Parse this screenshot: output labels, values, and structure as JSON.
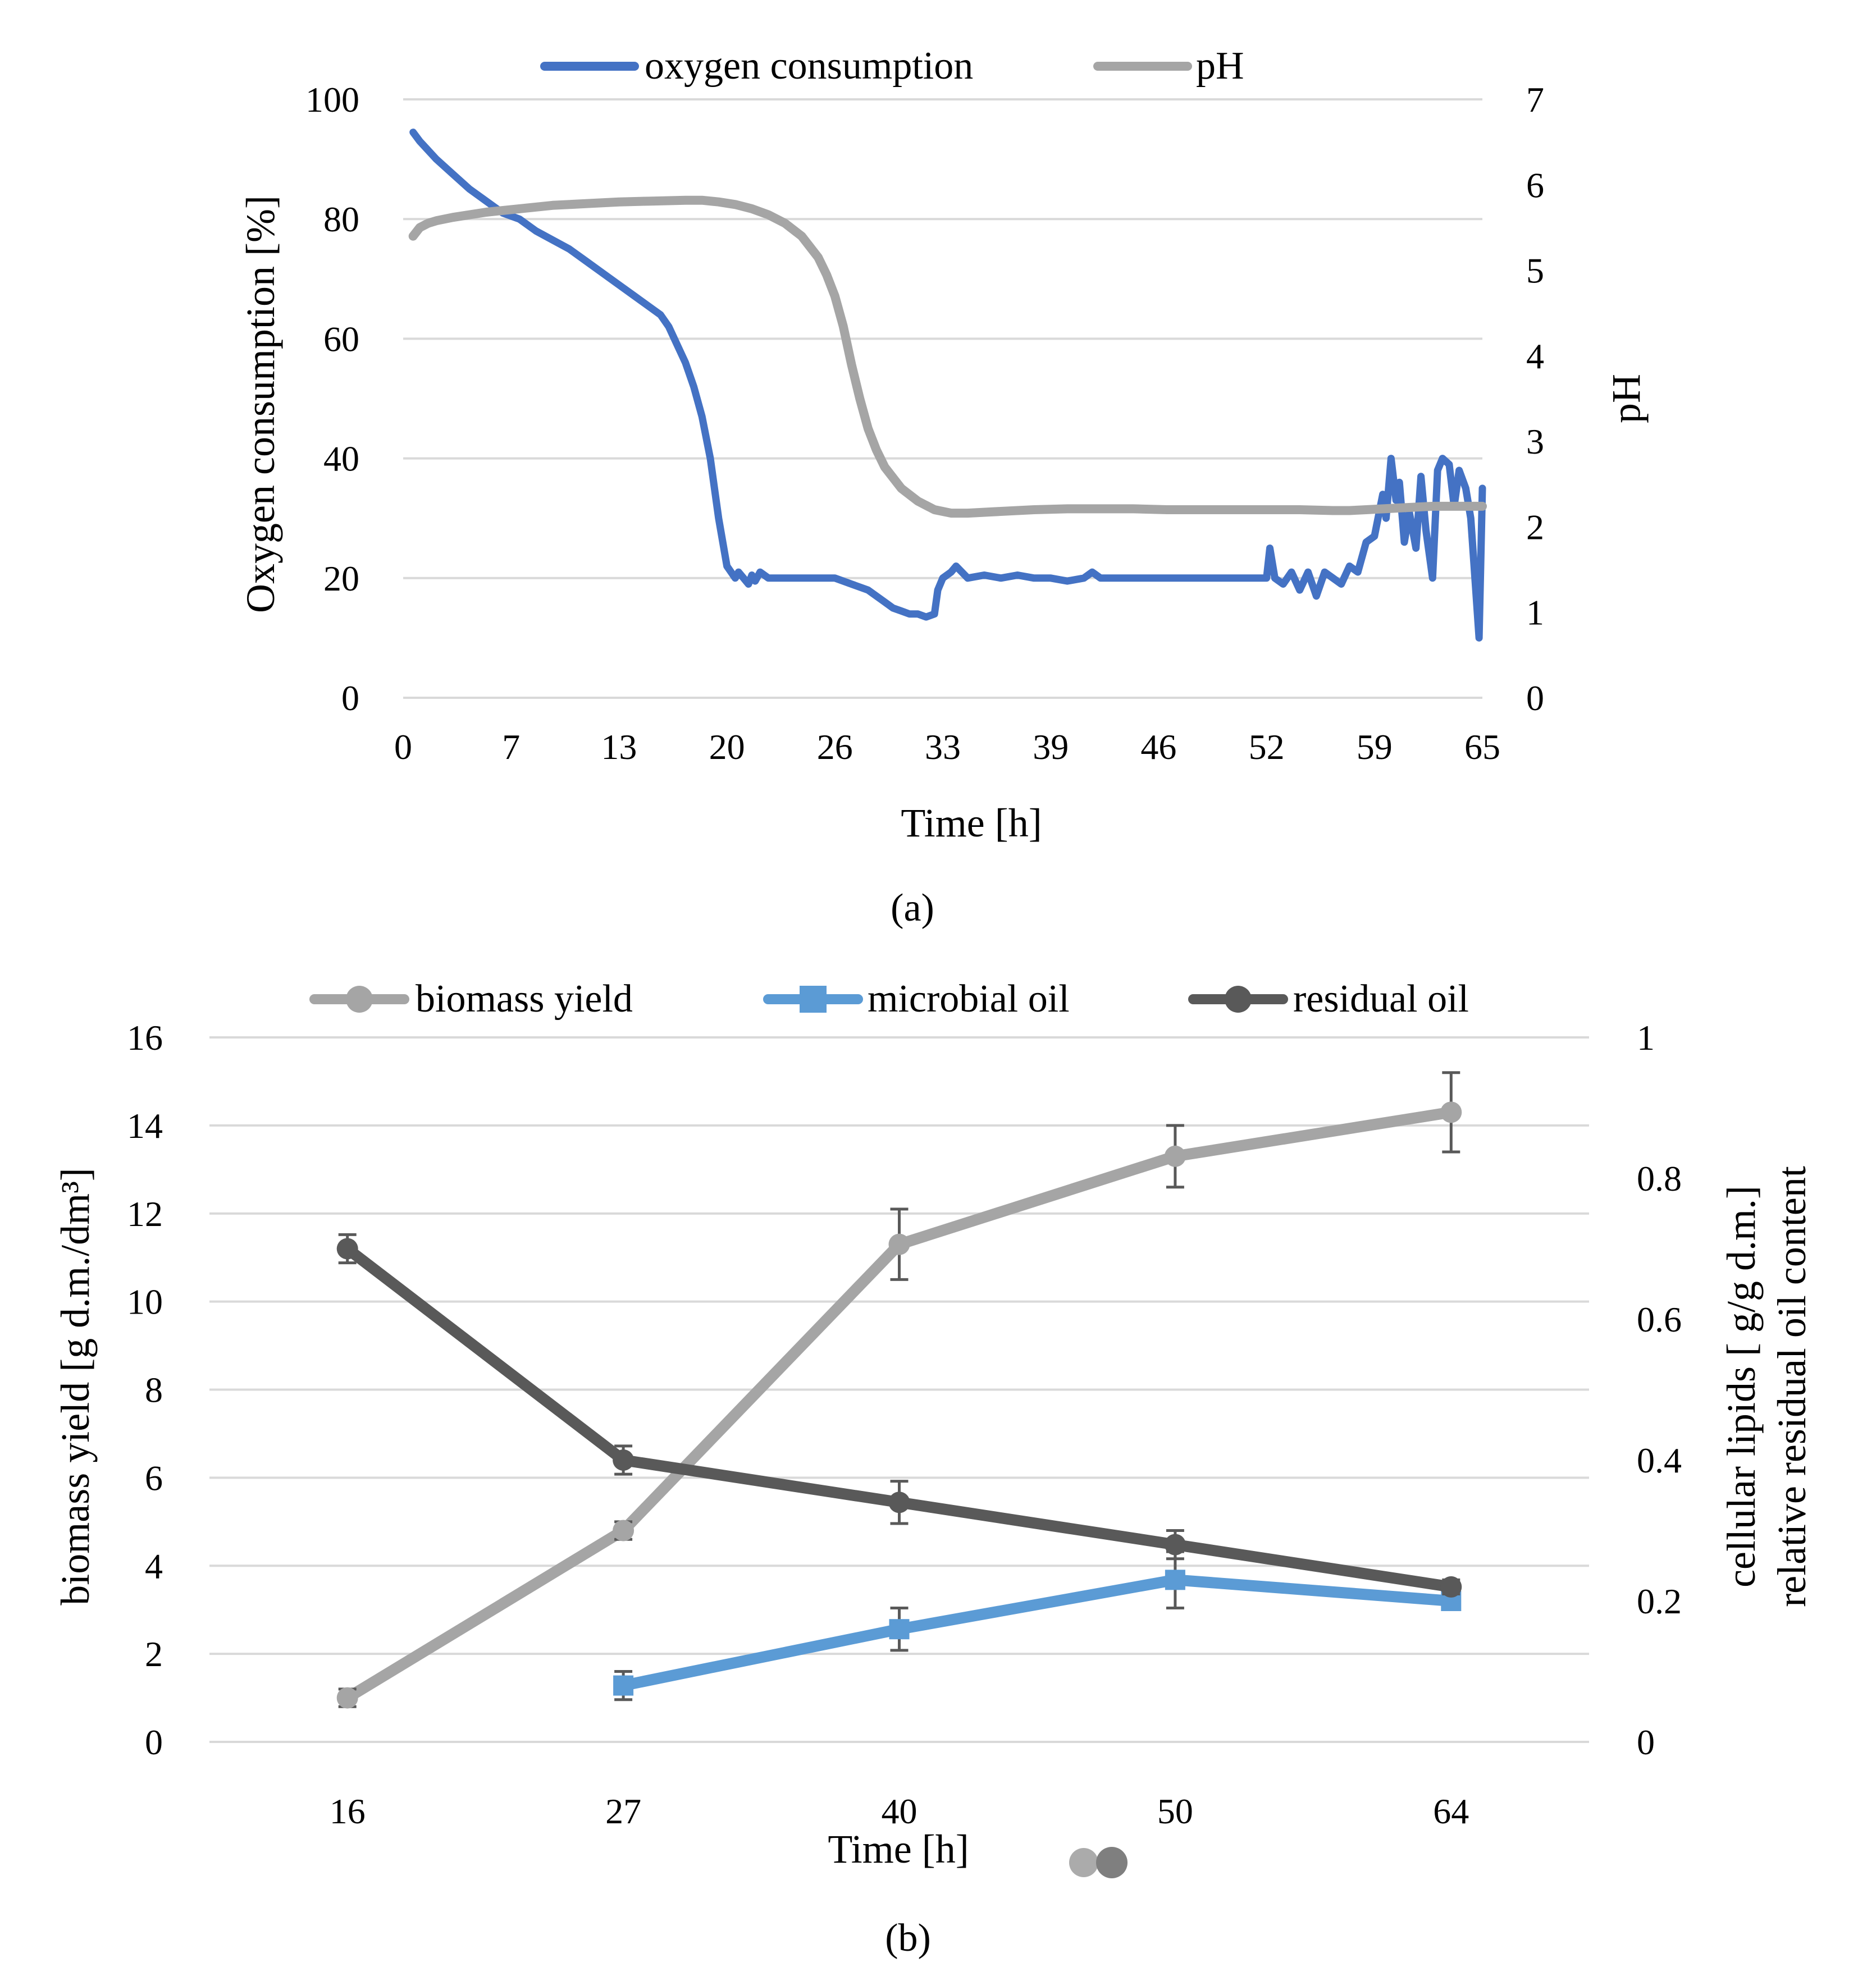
{
  "chart_data": [
    {
      "type": "line",
      "panel_label": "a",
      "xlabel": "Time [h]",
      "ylabel": "Oxygen consumption [%]",
      "y2label": "pH",
      "x_ticks": [
        "0",
        "7",
        "13",
        "20",
        "26",
        "33",
        "39",
        "46",
        "52",
        "59",
        "65"
      ],
      "xlim": [
        0,
        65
      ],
      "ylim": [
        0,
        100
      ],
      "y_ticks": [
        0,
        20,
        40,
        60,
        80,
        100
      ],
      "y2lim": [
        0,
        7
      ],
      "y2_ticks": [
        0,
        1,
        2,
        3,
        4,
        5,
        6,
        7
      ],
      "grid": true,
      "legend": "top-center",
      "series": [
        {
          "name": "oxygen consumption",
          "axis": "left",
          "color": "#4472c4",
          "x": [
            0.6,
            1,
            2,
            3,
            4,
            5,
            6,
            7,
            8,
            9,
            10,
            11,
            12,
            13,
            14,
            15,
            15.5,
            16,
            16.5,
            17,
            17.5,
            18,
            18.5,
            19,
            19.5,
            20,
            20.2,
            20.5,
            20.8,
            21,
            21.2,
            21.5,
            22,
            23,
            23.5,
            24,
            25,
            26,
            27,
            28,
            29,
            29.5,
            30,
            30.5,
            31,
            31.5,
            32,
            32.2,
            32.5,
            33,
            33.3,
            34,
            35,
            36,
            37,
            38,
            39,
            40,
            41,
            41.5,
            42,
            43,
            44,
            45,
            46,
            47,
            48,
            49,
            50,
            51,
            52,
            52.2,
            52.5,
            53,
            53.5,
            54,
            54.5,
            55,
            55.5,
            56,
            56.5,
            57,
            57.5,
            58,
            58.5,
            59,
            59.2,
            59.5,
            59.8,
            60,
            60.3,
            60.6,
            61,
            61.3,
            61.6,
            62,
            62.3,
            62.6,
            63,
            63.3,
            63.6,
            64,
            64.3,
            64.6,
            64.8,
            65
          ],
          "y": [
            94.5,
            93,
            90,
            87.5,
            85,
            83,
            81,
            80,
            78,
            76.5,
            75,
            73,
            71,
            69,
            67,
            65,
            64,
            62,
            59,
            56,
            52,
            47,
            40,
            30,
            22,
            20,
            21,
            20,
            19,
            20.5,
            19.5,
            21,
            20,
            20,
            20,
            20,
            20,
            20,
            19,
            18,
            16,
            15,
            14.5,
            14,
            14,
            13.5,
            14,
            18,
            20,
            21,
            22,
            20,
            20.5,
            20,
            20.5,
            20,
            20,
            19.5,
            20,
            21,
            20,
            20,
            20,
            20,
            20,
            20,
            20,
            20,
            20,
            20,
            20,
            25,
            20,
            19,
            21,
            18,
            21,
            17,
            21,
            20,
            19,
            22,
            21,
            26,
            27,
            34,
            30,
            40,
            33,
            36,
            26,
            31,
            25,
            37,
            28,
            20,
            38,
            40,
            39,
            32,
            38,
            35,
            30,
            18,
            10,
            35
          ]
        },
        {
          "name": "pH",
          "axis": "right",
          "color": "#a5a5a5",
          "x": [
            0.6,
            1,
            1.5,
            2,
            3,
            5,
            7,
            9,
            11,
            13,
            15,
            17,
            18,
            19,
            20,
            21,
            22,
            23,
            24,
            25,
            25.5,
            26,
            26.5,
            27,
            27.5,
            28,
            28.5,
            29,
            30,
            31,
            32,
            33,
            34,
            36,
            38,
            40,
            42,
            44,
            46,
            48,
            50,
            52,
            54,
            56,
            57,
            58,
            60,
            62,
            64,
            65
          ],
          "y": [
            5.4,
            5.5,
            5.55,
            5.58,
            5.62,
            5.68,
            5.72,
            5.76,
            5.78,
            5.8,
            5.81,
            5.82,
            5.82,
            5.8,
            5.77,
            5.72,
            5.65,
            5.55,
            5.4,
            5.15,
            4.95,
            4.7,
            4.35,
            3.9,
            3.5,
            3.15,
            2.9,
            2.7,
            2.45,
            2.3,
            2.2,
            2.16,
            2.16,
            2.18,
            2.2,
            2.21,
            2.21,
            2.21,
            2.2,
            2.2,
            2.2,
            2.2,
            2.2,
            2.19,
            2.19,
            2.2,
            2.22,
            2.24,
            2.24,
            2.24
          ]
        }
      ]
    },
    {
      "type": "line",
      "panel_label": "b",
      "xlabel": "Time [h]",
      "ylabel": "biomass yield [g d.m./dm³]",
      "y2label": "cellular lipids [ g/g d.m.]\nrelative residual oil content",
      "y2label_lines": [
        "cellular lipids [ g/g d.m.]",
        "relative residual oil content"
      ],
      "categories": [
        "16",
        "27",
        "40",
        "50",
        "64"
      ],
      "ylim": [
        0,
        16
      ],
      "y_ticks": [
        0,
        2,
        4,
        6,
        8,
        10,
        12,
        14,
        16
      ],
      "y2lim": [
        0,
        1
      ],
      "y2_ticks": [
        "0",
        "0.2",
        "0.4",
        "0.6",
        "0.8",
        "1"
      ],
      "grid": true,
      "legend": "top-center",
      "series": [
        {
          "name": "biomass yield",
          "axis": "left",
          "color": "#a5a5a5",
          "marker": "circle",
          "values": [
            1.0,
            4.8,
            11.3,
            13.3,
            14.3
          ],
          "errors": [
            0.2,
            0.2,
            0.8,
            0.7,
            0.9
          ]
        },
        {
          "name": "microbial oil",
          "axis": "right",
          "color": "#5b9bd5",
          "marker": "square",
          "values": [
            null,
            0.08,
            0.16,
            0.23,
            0.2
          ],
          "errors": [
            null,
            0.02,
            0.03,
            0.04,
            0.01
          ]
        },
        {
          "name": "residual oil",
          "axis": "right",
          "color": "#595959",
          "marker": "circle",
          "values": [
            0.7,
            0.4,
            0.34,
            0.28,
            0.22
          ],
          "errors": [
            0.02,
            0.02,
            0.03,
            0.02,
            0.01
          ]
        }
      ]
    }
  ],
  "captions": {
    "a": "(a)",
    "b": "(b)"
  }
}
